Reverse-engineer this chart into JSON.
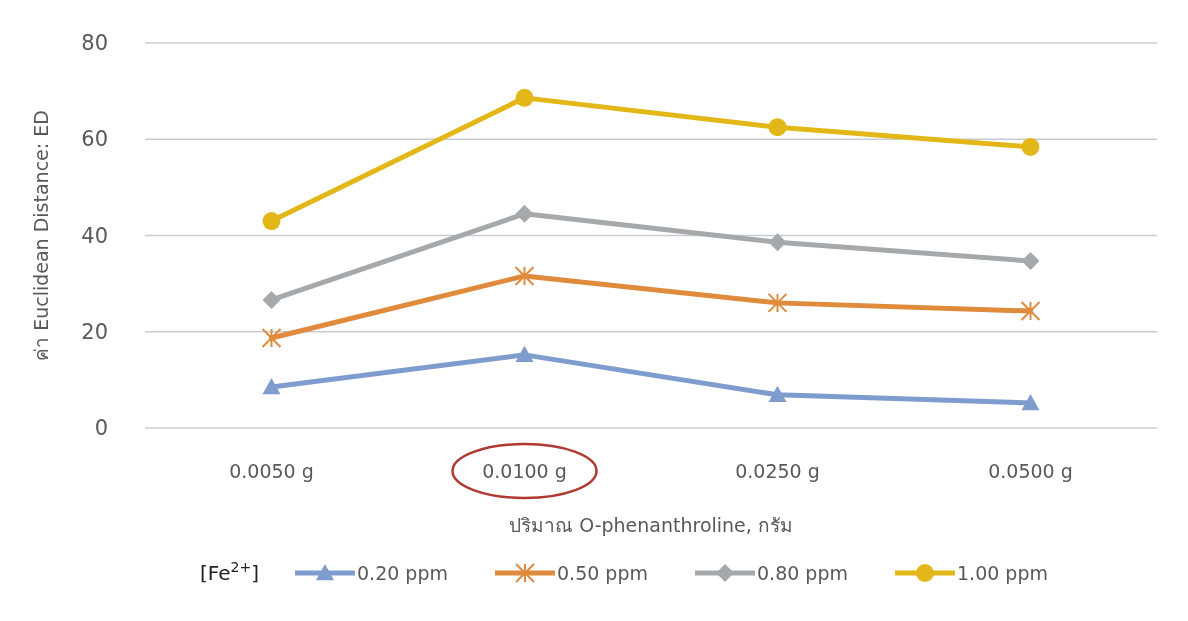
{
  "chart_data": {
    "type": "line",
    "xlabel": "ปริมาณ O-phenanthroline, กรัม",
    "ylabel": "ค่า Euclidean Distance: ED",
    "legend_title": "[Fe$^{2+}$]",
    "categories": [
      "0.0050 g",
      "0.0100 g",
      "0.0250 g",
      "0.0500 g"
    ],
    "series": [
      {
        "name": "0.20 ppm",
        "color": "#7f9ccf",
        "marker": "triangle",
        "values": [
          8.5,
          15.2,
          6.9,
          5.2
        ]
      },
      {
        "name": "0.50 ppm",
        "color": "#e08a3c",
        "marker": "cross",
        "values": [
          18.7,
          31.6,
          26.0,
          24.3
        ]
      },
      {
        "name": "0.80 ppm",
        "color": "#a5a9ac",
        "marker": "diamond",
        "values": [
          26.6,
          44.5,
          38.6,
          34.7
        ]
      },
      {
        "name": "1.00 ppm",
        "color": "#e3b718",
        "marker": "circle",
        "values": [
          43.0,
          68.6,
          62.5,
          58.4
        ]
      }
    ],
    "ylim": [
      0,
      80
    ],
    "yticks": [
      0,
      20,
      40,
      60,
      80
    ],
    "grid": "y",
    "legend": "bottom",
    "line_style": "solid"
  }
}
